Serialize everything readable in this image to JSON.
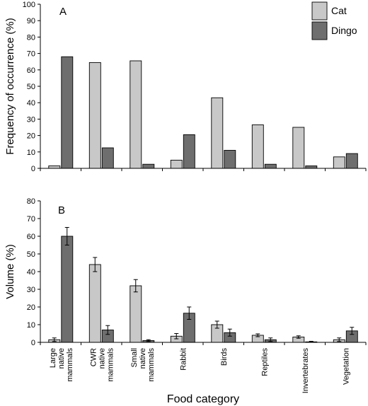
{
  "colors": {
    "cat": "#c8c8c8",
    "dingo": "#6e6e6e",
    "stroke": "#000000"
  },
  "chart_data": [
    {
      "type": "bar",
      "panel_label": "A",
      "ylabel": "Frequency of occurrence (%)",
      "ylim": [
        0,
        100
      ],
      "yticks": [
        0,
        10,
        20,
        30,
        40,
        50,
        60,
        70,
        80,
        90,
        100
      ],
      "grid": false,
      "legend": "top-right",
      "categories": [
        "Large native mammals",
        "CWR native mammals",
        "Small native mammals",
        "Rabbit",
        "Birds",
        "Reptiles",
        "Invertebrates",
        "Vegetation"
      ],
      "series": [
        {
          "name": "Cat",
          "values": [
            1.5,
            64.5,
            65.5,
            5,
            43,
            26.5,
            25,
            7
          ]
        },
        {
          "name": "Dingo",
          "values": [
            68,
            12.5,
            2.5,
            20.5,
            11,
            2.5,
            1.5,
            9
          ]
        }
      ]
    },
    {
      "type": "bar",
      "panel_label": "B",
      "ylabel": "Volume (%)",
      "xlabel": "Food category",
      "ylim": [
        0,
        80
      ],
      "yticks": [
        0,
        10,
        20,
        30,
        40,
        50,
        60,
        70,
        80
      ],
      "grid": false,
      "categories": [
        "Large native mammals",
        "CWR native mammals",
        "Small native mammals",
        "Rabbit",
        "Birds",
        "Reptiles",
        "Invertebrates",
        "Vegetation"
      ],
      "category_lines": [
        [
          "Large",
          "native",
          "mammals"
        ],
        [
          "CWR",
          "native",
          "mammals"
        ],
        [
          "Small",
          "native",
          "mammals"
        ],
        [
          "Rabbit"
        ],
        [
          "Birds"
        ],
        [
          "Reptiles"
        ],
        [
          "Invertebrates"
        ],
        [
          "Vegetation"
        ]
      ],
      "series": [
        {
          "name": "Cat",
          "values": [
            1.5,
            44,
            32,
            3.5,
            10,
            4,
            3,
            1.5
          ],
          "errors": [
            1,
            4,
            3.5,
            1.5,
            2,
            0.8,
            0.7,
            1
          ]
        },
        {
          "name": "Dingo",
          "values": [
            60,
            7,
            1,
            16.5,
            5.5,
            1.5,
            0.3,
            6.5
          ],
          "errors": [
            5,
            2.5,
            0.5,
            3.5,
            2,
            1,
            0.3,
            2
          ]
        }
      ]
    }
  ]
}
